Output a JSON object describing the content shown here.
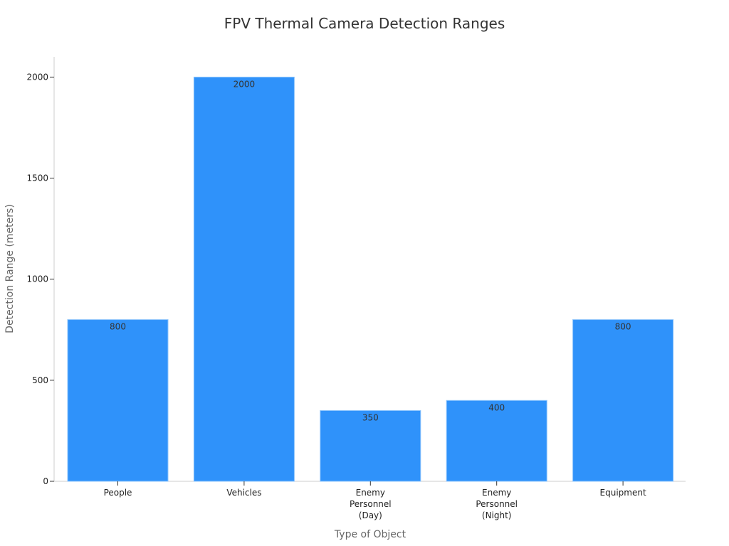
{
  "chart_data": {
    "type": "bar",
    "title": "FPV Thermal Camera Detection Ranges",
    "xlabel": "Type of Object",
    "ylabel": "Detection Range (meters)",
    "categories": [
      [
        "People"
      ],
      [
        "Vehicles"
      ],
      [
        "Enemy",
        "Personnel",
        "(Day)"
      ],
      [
        "Enemy",
        "Personnel",
        "(Night)"
      ],
      [
        "Equipment"
      ]
    ],
    "values": [
      800,
      2000,
      350,
      400,
      800
    ],
    "ylim": [
      0,
      2100
    ],
    "yticks": [
      0,
      500,
      1000,
      1500,
      2000
    ],
    "bar_color": "#2f92fa",
    "bar_edge_color": "#8cc4fc",
    "grid": false,
    "legend": "none"
  }
}
